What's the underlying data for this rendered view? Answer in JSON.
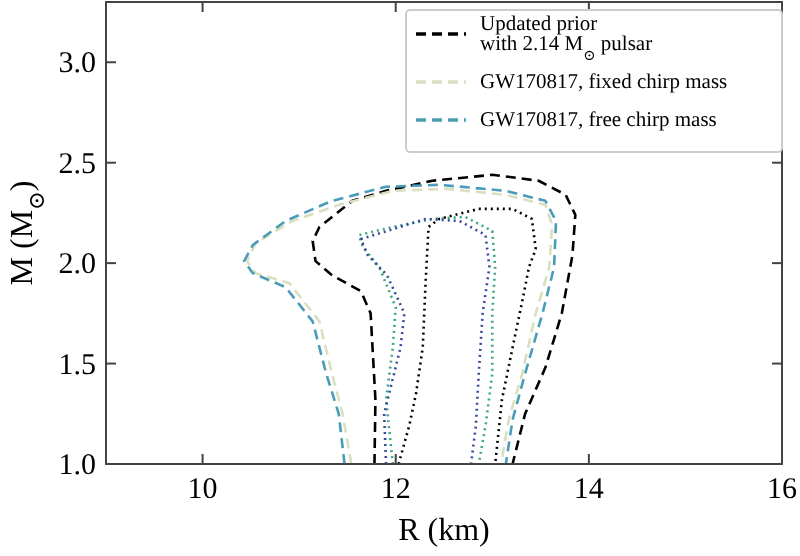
{
  "chart_data": {
    "type": "line",
    "xlabel": "R (km)",
    "ylabel": "M (M$_{⊙}$)",
    "xlim": [
      9,
      16
    ],
    "ylim": [
      1,
      3.3
    ],
    "xticks": [
      10,
      12,
      14,
      16
    ],
    "yticks": [
      {
        "value": 1,
        "label": "1.0"
      },
      1.5,
      {
        "value": 2,
        "label": "2.0"
      },
      2.5,
      {
        "value": 3,
        "label": "3.0"
      }
    ],
    "legend": "top right",
    "grid": false,
    "series": [
      {
        "name": "Updated prior\nwith 2.14 M$_{⊙}$ pulsar",
        "color": "#000000",
        "line_style": "dashed",
        "x": [
          11.78,
          11.79,
          11.74,
          11.64,
          11.34,
          11.17,
          11.14,
          11.21,
          11.55,
          11.9,
          12.38,
          13.0,
          13.48,
          13.76,
          13.86,
          13.83,
          13.72,
          13.55,
          13.34,
          13.21
        ],
        "values": [
          1.0,
          1.32,
          1.75,
          1.86,
          1.94,
          2.01,
          2.11,
          2.18,
          2.31,
          2.36,
          2.41,
          2.44,
          2.41,
          2.34,
          2.24,
          2.04,
          1.75,
          1.48,
          1.25,
          1.0
        ]
      },
      {
        "name": "GW170817, fixed chirp mass",
        "color": "#d9dfbf",
        "line_style": "dashed",
        "x": [
          11.54,
          11.45,
          11.34,
          11.21,
          10.9,
          10.55,
          10.46,
          10.55,
          10.93,
          11.41,
          11.97,
          12.52,
          13.14,
          13.55,
          13.62,
          13.59,
          13.45,
          13.31,
          13.17,
          13.09
        ],
        "values": [
          1.0,
          1.25,
          1.45,
          1.71,
          1.9,
          1.95,
          2.01,
          2.1,
          2.21,
          2.29,
          2.36,
          2.37,
          2.34,
          2.29,
          2.19,
          1.98,
          1.75,
          1.45,
          1.22,
          1.0
        ]
      },
      {
        "name": "GW170817, free chirp mass",
        "color": "#4a9cb8",
        "line_style": "dashed",
        "x": [
          11.47,
          11.41,
          11.28,
          11.14,
          10.86,
          10.52,
          10.43,
          10.52,
          10.86,
          11.34,
          11.9,
          12.45,
          13.14,
          13.55,
          13.66,
          13.64,
          13.52,
          13.34,
          13.21,
          13.14
        ],
        "values": [
          1.0,
          1.25,
          1.45,
          1.71,
          1.88,
          1.95,
          2.01,
          2.09,
          2.21,
          2.31,
          2.38,
          2.39,
          2.36,
          2.31,
          2.21,
          1.98,
          1.75,
          1.45,
          1.22,
          1.0
        ]
      },
      {
        "color": "#000000",
        "line_style": "dotted",
        "x": [
          12.03,
          12.14,
          12.21,
          12.28,
          12.31,
          12.34,
          12.45,
          12.86,
          13.21,
          13.41,
          13.45,
          13.38,
          13.31,
          13.21,
          13.1,
          13.03
        ],
        "values": [
          1.0,
          1.19,
          1.35,
          1.58,
          1.91,
          2.18,
          2.22,
          2.27,
          2.27,
          2.22,
          2.07,
          1.98,
          1.81,
          1.58,
          1.32,
          1.0
        ]
      },
      {
        "color": "#3aa886",
        "line_style": "dotted",
        "x": [
          11.97,
          11.9,
          11.97,
          12.0,
          11.83,
          11.66,
          11.62,
          11.97,
          12.38,
          12.72,
          13.0,
          13.03,
          13.0,
          13.0,
          12.93,
          12.86
        ],
        "values": [
          1.0,
          1.32,
          1.58,
          1.78,
          1.98,
          2.08,
          2.14,
          2.18,
          2.22,
          2.23,
          2.16,
          1.98,
          1.75,
          1.45,
          1.19,
          1.0
        ]
      },
      {
        "color": "#3a4aa0",
        "line_style": "dotted",
        "x": [
          11.9,
          11.88,
          12.05,
          12.09,
          11.91,
          11.71,
          11.64,
          11.91,
          12.31,
          12.66,
          12.93,
          12.97,
          12.9,
          12.86,
          12.83,
          12.78
        ],
        "values": [
          1.0,
          1.25,
          1.58,
          1.75,
          1.94,
          2.04,
          2.12,
          2.16,
          2.22,
          2.21,
          2.14,
          1.98,
          1.75,
          1.45,
          1.19,
          1.0
        ]
      }
    ]
  }
}
